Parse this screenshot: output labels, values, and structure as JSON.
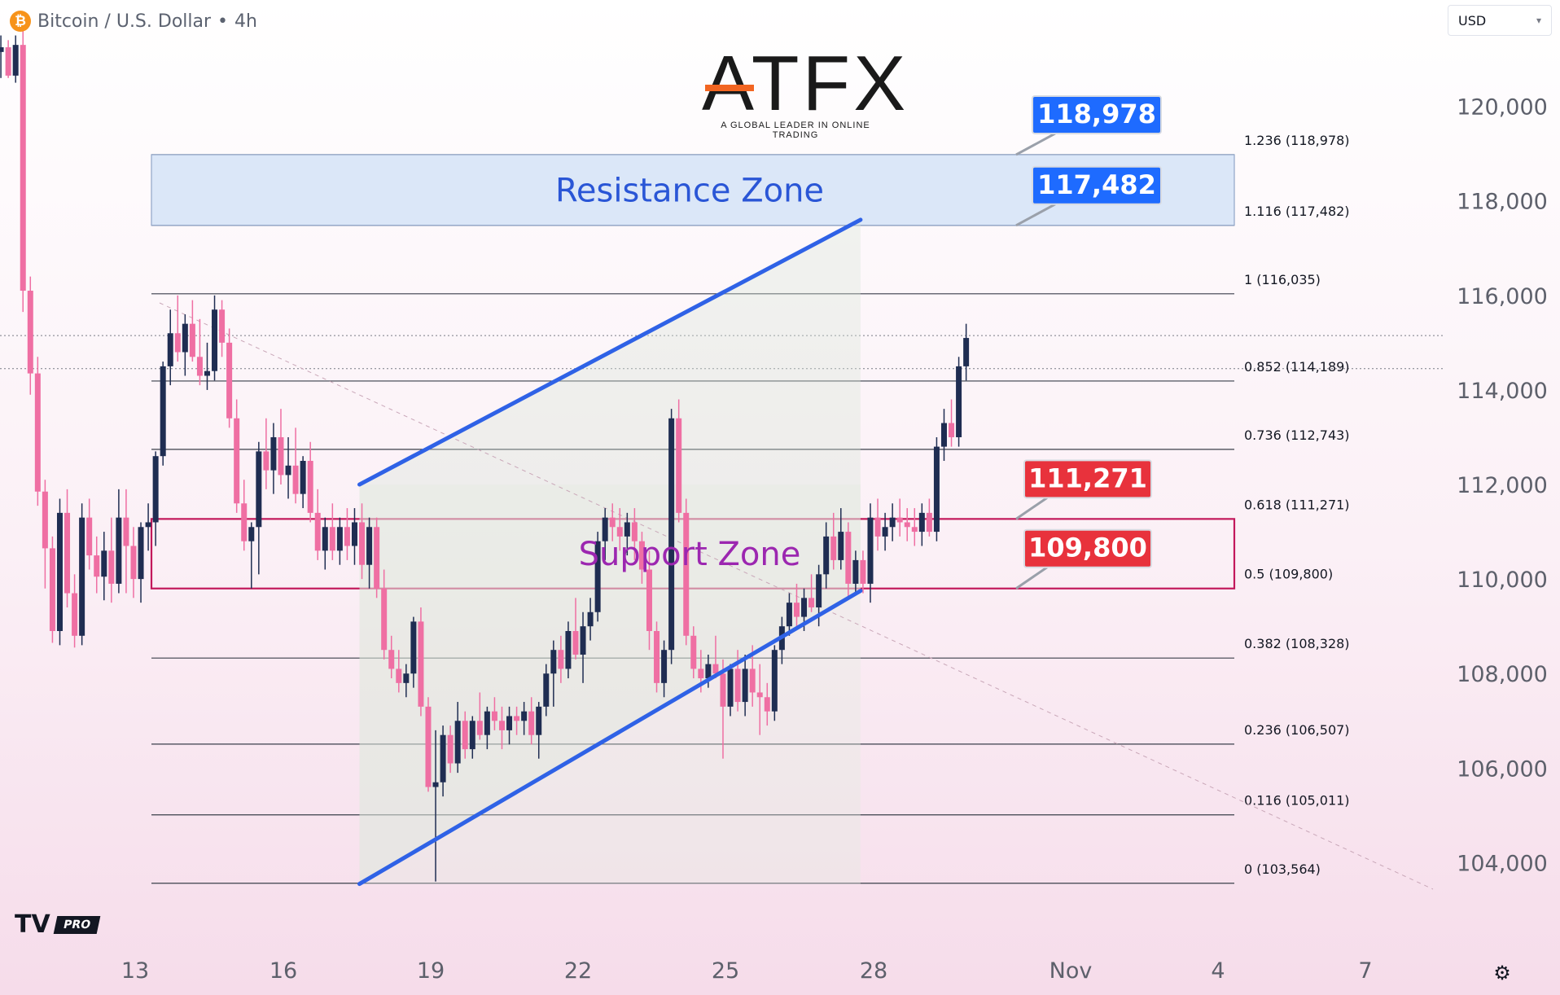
{
  "header": {
    "symbol_icon": "bitcoin-icon",
    "title": "Bitcoin / U.S. Dollar",
    "separator": "•",
    "interval": "4h"
  },
  "currency": {
    "selected": "USD"
  },
  "logo": {
    "wordmark": "ATFX",
    "tagline": "A GLOBAL LEADER IN ONLINE TRADING"
  },
  "tv_logo": {
    "badge": "PRO"
  },
  "colors": {
    "up": "#1f2d52",
    "down": "#ef6fa3",
    "channel": "#2f62e6",
    "resistance": "#2f62e6",
    "support": "#c2185b",
    "label_blue": "#1e6bff",
    "label_red": "#e8323c",
    "support_text": "#9c27b0"
  },
  "chart_data": {
    "type": "candlestick",
    "title": "Bitcoin / U.S. Dollar • 4h",
    "y_axis": {
      "ylim": [
        102440,
        122250
      ],
      "ticks": [
        "104,000",
        "106,000",
        "108,000",
        "110,000",
        "112,000",
        "114,000",
        "116,000",
        "118,000",
        "120,000"
      ]
    },
    "x_axis": {
      "ticks": [
        "13",
        "16",
        "19",
        "22",
        "25",
        "28",
        "Nov",
        "4",
        "7"
      ]
    },
    "fib_levels": [
      {
        "label": "1.236 (118,978)",
        "value": 118978
      },
      {
        "label": "1.116 (117,482)",
        "value": 117482
      },
      {
        "label": "1 (116,035)",
        "value": 116035
      },
      {
        "label": "0.852 (114,189)",
        "value": 114189
      },
      {
        "label": "0.736 (112,743)",
        "value": 112743
      },
      {
        "label": "0.618 (111,271)",
        "value": 111271
      },
      {
        "label": "0.5 (109,800)",
        "value": 109800
      },
      {
        "label": "0.382 (108,328)",
        "value": 108328
      },
      {
        "label": "0.236 (106,507)",
        "value": 106507
      },
      {
        "label": "0.116 (105,011)",
        "value": 105011
      },
      {
        "label": "0 (103,564)",
        "value": 103564
      }
    ],
    "zones": [
      {
        "name": "Resistance Zone",
        "from": 117482,
        "to": 118978
      },
      {
        "name": "Support Zone",
        "from": 109800,
        "to": 111271
      }
    ],
    "price_labels": [
      {
        "text": "118,978",
        "value": 118978,
        "color": "blue"
      },
      {
        "text": "117,482",
        "value": 117482,
        "color": "blue"
      },
      {
        "text": "111,271",
        "value": 111271,
        "color": "red"
      },
      {
        "text": "109,800",
        "value": 109800,
        "color": "red"
      }
    ],
    "channel": {
      "upper": [
        [
          17.55,
          112000
        ],
        [
          27.75,
          117600
        ]
      ],
      "lower": [
        [
          17.55,
          103550
        ],
        [
          27.75,
          109750
        ]
      ]
    },
    "price_lines": [
      115150,
      114450
    ],
    "candles": [
      [
        10.1,
        121350,
        121800,
        120800,
        121150
      ],
      [
        10.25,
        121150,
        121500,
        120600,
        121250
      ],
      [
        10.4,
        121250,
        121400,
        120600,
        120650
      ],
      [
        10.55,
        120650,
        121500,
        120500,
        121300
      ],
      [
        10.7,
        121300,
        121600,
        115650,
        116100
      ],
      [
        10.85,
        116100,
        116400,
        113900,
        114350
      ],
      [
        11.0,
        114350,
        114700,
        111550,
        111850
      ],
      [
        11.15,
        111850,
        112100,
        109800,
        110650
      ],
      [
        11.3,
        110650,
        110900,
        108650,
        108900
      ],
      [
        11.45,
        108900,
        111700,
        108600,
        111400
      ],
      [
        11.6,
        111400,
        111900,
        109400,
        109700
      ],
      [
        11.75,
        109700,
        110100,
        108550,
        108800
      ],
      [
        11.9,
        108800,
        111600,
        108600,
        111300
      ],
      [
        12.05,
        111300,
        111700,
        110200,
        110500
      ],
      [
        12.2,
        110500,
        110900,
        109700,
        110050
      ],
      [
        12.35,
        110050,
        111000,
        109550,
        110600
      ],
      [
        12.5,
        110600,
        111300,
        109500,
        109900
      ],
      [
        12.65,
        109900,
        111900,
        109700,
        111300
      ],
      [
        12.8,
        111300,
        111900,
        109700,
        110700
      ],
      [
        12.95,
        110700,
        111100,
        109600,
        110000
      ],
      [
        13.1,
        110000,
        111200,
        109500,
        111100
      ],
      [
        13.25,
        111100,
        111600,
        110600,
        111200
      ],
      [
        13.4,
        111200,
        112700,
        110700,
        112600
      ],
      [
        13.55,
        112600,
        114600,
        112400,
        114500
      ],
      [
        13.7,
        114500,
        115700,
        114100,
        115200
      ],
      [
        13.85,
        115200,
        116000,
        114600,
        114800
      ],
      [
        14.0,
        114800,
        115600,
        114300,
        115400
      ],
      [
        14.15,
        115400,
        115900,
        114600,
        114700
      ],
      [
        14.3,
        114700,
        115500,
        114100,
        114300
      ],
      [
        14.45,
        114300,
        115000,
        114000,
        114400
      ],
      [
        14.6,
        114400,
        116000,
        114200,
        115700
      ],
      [
        14.75,
        115700,
        115900,
        114700,
        115000
      ],
      [
        14.9,
        115000,
        115300,
        113200,
        113400
      ],
      [
        15.05,
        113400,
        113800,
        111400,
        111600
      ],
      [
        15.2,
        111600,
        112100,
        110600,
        110800
      ],
      [
        15.35,
        110800,
        111200,
        109800,
        111100
      ],
      [
        15.5,
        111100,
        112900,
        110100,
        112700
      ],
      [
        15.65,
        112700,
        113400,
        111900,
        112300
      ],
      [
        15.8,
        112300,
        113300,
        111800,
        113000
      ],
      [
        15.95,
        113000,
        113600,
        112000,
        112200
      ],
      [
        16.1,
        112200,
        113000,
        111700,
        112400
      ],
      [
        16.25,
        112400,
        113200,
        111600,
        111800
      ],
      [
        16.4,
        111800,
        112600,
        111500,
        112500
      ],
      [
        16.55,
        112500,
        112900,
        111200,
        111400
      ],
      [
        16.7,
        111400,
        111900,
        110400,
        110600
      ],
      [
        16.85,
        110600,
        111300,
        110200,
        111100
      ],
      [
        17.0,
        111100,
        111600,
        110400,
        110600
      ],
      [
        17.15,
        110600,
        111300,
        110300,
        111100
      ],
      [
        17.3,
        111100,
        111500,
        110400,
        110700
      ],
      [
        17.45,
        110700,
        111500,
        110300,
        111200
      ],
      [
        17.6,
        111200,
        111600,
        110000,
        110300
      ],
      [
        17.75,
        110300,
        111300,
        109800,
        111100
      ],
      [
        17.9,
        111100,
        111300,
        109600,
        109800
      ],
      [
        18.05,
        109800,
        110200,
        108300,
        108500
      ],
      [
        18.2,
        108500,
        108800,
        107900,
        108100
      ],
      [
        18.35,
        108100,
        108500,
        107600,
        107800
      ],
      [
        18.5,
        107800,
        108200,
        107500,
        108000
      ],
      [
        18.65,
        108000,
        109200,
        107700,
        109100
      ],
      [
        18.8,
        109100,
        109400,
        107100,
        107300
      ],
      [
        18.95,
        107300,
        107500,
        105500,
        105600
      ],
      [
        19.1,
        105600,
        106800,
        103600,
        105700
      ],
      [
        19.25,
        105700,
        106900,
        105400,
        106700
      ],
      [
        19.4,
        106700,
        106900,
        105900,
        106100
      ],
      [
        19.55,
        106100,
        107400,
        105900,
        107000
      ],
      [
        19.7,
        107000,
        107200,
        106200,
        106400
      ],
      [
        19.85,
        106400,
        107100,
        106200,
        107000
      ],
      [
        20.0,
        107000,
        107600,
        106600,
        106700
      ],
      [
        20.15,
        106700,
        107300,
        106400,
        107200
      ],
      [
        20.3,
        107200,
        107500,
        106800,
        107000
      ],
      [
        20.45,
        107000,
        107300,
        106400,
        106800
      ],
      [
        20.6,
        106800,
        107300,
        106500,
        107100
      ],
      [
        20.75,
        107100,
        107300,
        106700,
        107000
      ],
      [
        20.9,
        107000,
        107400,
        106700,
        107200
      ],
      [
        21.05,
        107200,
        107500,
        106500,
        106700
      ],
      [
        21.2,
        106700,
        107400,
        106200,
        107300
      ],
      [
        21.35,
        107300,
        108200,
        107100,
        108000
      ],
      [
        21.5,
        108000,
        108700,
        107300,
        108500
      ],
      [
        21.65,
        108500,
        108800,
        107800,
        108100
      ],
      [
        21.8,
        108100,
        109100,
        107900,
        108900
      ],
      [
        21.95,
        108900,
        109600,
        108300,
        108400
      ],
      [
        22.1,
        108400,
        109300,
        107800,
        109000
      ],
      [
        22.25,
        109000,
        109600,
        108700,
        109300
      ],
      [
        22.4,
        109300,
        111000,
        109100,
        110800
      ],
      [
        22.55,
        110800,
        111500,
        110400,
        111300
      ],
      [
        22.7,
        111300,
        111600,
        110800,
        111100
      ],
      [
        22.85,
        111100,
        111500,
        110600,
        110900
      ],
      [
        23.0,
        110900,
        111400,
        110500,
        111200
      ],
      [
        23.15,
        111200,
        111500,
        110400,
        110800
      ],
      [
        23.3,
        110800,
        111000,
        109900,
        110200
      ],
      [
        23.45,
        110200,
        110600,
        108500,
        108900
      ],
      [
        23.6,
        108900,
        109100,
        107600,
        107800
      ],
      [
        23.75,
        107800,
        108700,
        107500,
        108500
      ],
      [
        23.9,
        108500,
        113600,
        108200,
        113400
      ],
      [
        24.05,
        113400,
        113800,
        111200,
        111400
      ],
      [
        24.2,
        111400,
        111700,
        108600,
        108800
      ],
      [
        24.35,
        108800,
        109000,
        107900,
        108100
      ],
      [
        24.5,
        108100,
        108500,
        107600,
        107900
      ],
      [
        24.65,
        107900,
        108400,
        107700,
        108200
      ],
      [
        24.8,
        108200,
        108800,
        107900,
        108000
      ],
      [
        24.95,
        108000,
        108300,
        106200,
        107300
      ],
      [
        25.1,
        107300,
        108200,
        107100,
        108100
      ],
      [
        25.25,
        108100,
        108500,
        107200,
        107400
      ],
      [
        25.4,
        107400,
        108400,
        107100,
        108100
      ],
      [
        25.55,
        108100,
        108600,
        107300,
        107600
      ],
      [
        25.7,
        107600,
        108200,
        106700,
        107500
      ],
      [
        25.85,
        107500,
        107800,
        106900,
        107200
      ],
      [
        26.0,
        107200,
        108600,
        107000,
        108500
      ],
      [
        26.15,
        108500,
        109200,
        108200,
        109000
      ],
      [
        26.3,
        109000,
        109700,
        108800,
        109500
      ],
      [
        26.45,
        109500,
        109900,
        109000,
        109200
      ],
      [
        26.6,
        109200,
        109800,
        108900,
        109600
      ],
      [
        26.75,
        109600,
        110100,
        109300,
        109400
      ],
      [
        26.9,
        109400,
        110300,
        109000,
        110100
      ],
      [
        27.05,
        110100,
        111200,
        109800,
        110900
      ],
      [
        27.2,
        110900,
        111400,
        110200,
        110400
      ],
      [
        27.35,
        110400,
        111500,
        110200,
        111000
      ],
      [
        27.5,
        111000,
        111200,
        109600,
        109900
      ],
      [
        27.65,
        109900,
        110600,
        109700,
        110400
      ],
      [
        27.8,
        110400,
        110600,
        109700,
        109900
      ],
      [
        27.95,
        109900,
        111600,
        109500,
        111300
      ],
      [
        28.1,
        111300,
        111700,
        110600,
        110900
      ],
      [
        28.25,
        110900,
        111400,
        110600,
        111100
      ],
      [
        28.4,
        111100,
        111600,
        110800,
        111300
      ],
      [
        28.55,
        111300,
        111700,
        110900,
        111200
      ],
      [
        28.7,
        111200,
        111500,
        110800,
        111100
      ],
      [
        28.85,
        111100,
        111500,
        110700,
        111000
      ],
      [
        29.0,
        111000,
        111600,
        110700,
        111400
      ],
      [
        29.15,
        111400,
        111700,
        110900,
        111000
      ],
      [
        29.3,
        111000,
        113000,
        110800,
        112800
      ],
      [
        29.45,
        112800,
        113600,
        112500,
        113300
      ],
      [
        29.6,
        113300,
        113800,
        112800,
        113000
      ],
      [
        29.75,
        113000,
        114700,
        112800,
        114500
      ],
      [
        29.9,
        114500,
        115400,
        114200,
        115100
      ]
    ]
  }
}
